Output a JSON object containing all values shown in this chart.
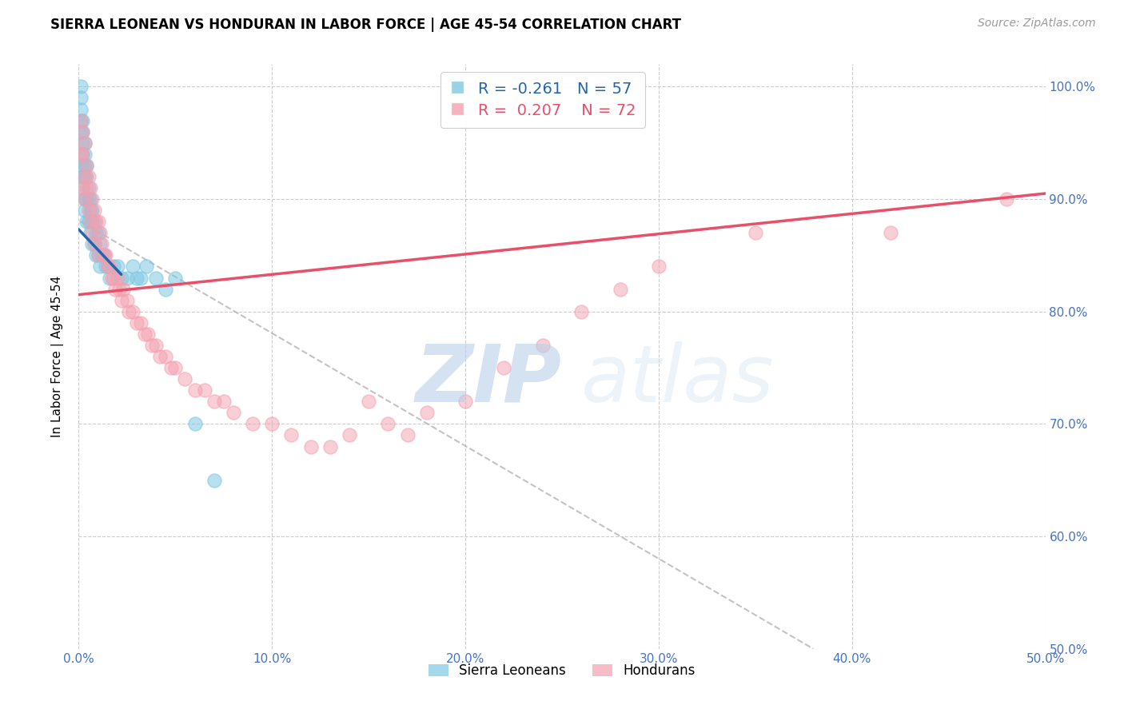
{
  "title": "SIERRA LEONEAN VS HONDURAN IN LABOR FORCE | AGE 45-54 CORRELATION CHART",
  "source": "Source: ZipAtlas.com",
  "ylabel": "In Labor Force | Age 45-54",
  "xlim": [
    0.0,
    0.5
  ],
  "ylim": [
    0.5,
    1.02
  ],
  "xticks": [
    0.0,
    0.1,
    0.2,
    0.3,
    0.4,
    0.5
  ],
  "xtick_labels": [
    "0.0%",
    "10.0%",
    "20.0%",
    "30.0%",
    "40.0%",
    "50.0%"
  ],
  "yticks": [
    0.5,
    0.6,
    0.7,
    0.8,
    0.9,
    1.0
  ],
  "ytick_labels": [
    "50.0%",
    "60.0%",
    "70.0%",
    "80.0%",
    "90.0%",
    "100.0%"
  ],
  "blue_color": "#7ec8e3",
  "pink_color": "#f4a0b0",
  "trend_blue_color": "#2166ac",
  "trend_pink_color": "#e8506a",
  "trend_gray_color": "#aaaaaa",
  "legend_R_blue": "-0.261",
  "legend_N_blue": "57",
  "legend_R_pink": "0.207",
  "legend_N_pink": "72",
  "legend_label_blue": "Sierra Leoneans",
  "legend_label_pink": "Hondurans",
  "blue_scatter_x": [
    0.001,
    0.001,
    0.001,
    0.001,
    0.001,
    0.002,
    0.002,
    0.002,
    0.002,
    0.002,
    0.002,
    0.002,
    0.003,
    0.003,
    0.003,
    0.003,
    0.003,
    0.003,
    0.004,
    0.004,
    0.004,
    0.004,
    0.005,
    0.005,
    0.005,
    0.006,
    0.006,
    0.006,
    0.007,
    0.007,
    0.007,
    0.008,
    0.008,
    0.009,
    0.009,
    0.01,
    0.01,
    0.011,
    0.011,
    0.012,
    0.013,
    0.014,
    0.015,
    0.016,
    0.018,
    0.02,
    0.022,
    0.025,
    0.028,
    0.03,
    0.032,
    0.035,
    0.04,
    0.045,
    0.05,
    0.06,
    0.07
  ],
  "blue_scatter_y": [
    1.0,
    0.99,
    0.98,
    0.97,
    0.96,
    0.97,
    0.96,
    0.95,
    0.94,
    0.93,
    0.92,
    0.91,
    0.95,
    0.94,
    0.93,
    0.92,
    0.9,
    0.89,
    0.93,
    0.92,
    0.9,
    0.88,
    0.91,
    0.9,
    0.88,
    0.9,
    0.89,
    0.87,
    0.89,
    0.88,
    0.86,
    0.88,
    0.86,
    0.87,
    0.85,
    0.87,
    0.85,
    0.86,
    0.84,
    0.85,
    0.85,
    0.84,
    0.84,
    0.83,
    0.84,
    0.84,
    0.83,
    0.83,
    0.84,
    0.83,
    0.83,
    0.84,
    0.83,
    0.82,
    0.83,
    0.7,
    0.65
  ],
  "pink_scatter_x": [
    0.001,
    0.001,
    0.002,
    0.002,
    0.002,
    0.003,
    0.003,
    0.003,
    0.004,
    0.004,
    0.005,
    0.005,
    0.006,
    0.006,
    0.007,
    0.007,
    0.008,
    0.008,
    0.009,
    0.01,
    0.01,
    0.011,
    0.012,
    0.013,
    0.014,
    0.015,
    0.016,
    0.017,
    0.018,
    0.019,
    0.02,
    0.021,
    0.022,
    0.023,
    0.025,
    0.026,
    0.028,
    0.03,
    0.032,
    0.034,
    0.036,
    0.038,
    0.04,
    0.042,
    0.045,
    0.048,
    0.05,
    0.055,
    0.06,
    0.065,
    0.07,
    0.075,
    0.08,
    0.09,
    0.1,
    0.11,
    0.12,
    0.13,
    0.14,
    0.15,
    0.16,
    0.17,
    0.18,
    0.2,
    0.22,
    0.24,
    0.26,
    0.28,
    0.3,
    0.35,
    0.42,
    0.48
  ],
  "pink_scatter_y": [
    0.97,
    0.94,
    0.96,
    0.94,
    0.91,
    0.95,
    0.92,
    0.9,
    0.93,
    0.91,
    0.92,
    0.89,
    0.91,
    0.88,
    0.9,
    0.87,
    0.89,
    0.86,
    0.88,
    0.88,
    0.85,
    0.87,
    0.86,
    0.85,
    0.85,
    0.84,
    0.84,
    0.83,
    0.83,
    0.82,
    0.83,
    0.82,
    0.81,
    0.82,
    0.81,
    0.8,
    0.8,
    0.79,
    0.79,
    0.78,
    0.78,
    0.77,
    0.77,
    0.76,
    0.76,
    0.75,
    0.75,
    0.74,
    0.73,
    0.73,
    0.72,
    0.72,
    0.71,
    0.7,
    0.7,
    0.69,
    0.68,
    0.68,
    0.69,
    0.72,
    0.7,
    0.69,
    0.71,
    0.72,
    0.75,
    0.77,
    0.8,
    0.82,
    0.84,
    0.87,
    0.87,
    0.9
  ],
  "blue_trend_x": [
    0.0,
    0.022
  ],
  "blue_trend_y": [
    0.873,
    0.833
  ],
  "pink_trend_x": [
    0.0,
    0.5
  ],
  "pink_trend_y": [
    0.815,
    0.905
  ],
  "gray_trend_x": [
    0.001,
    0.38
  ],
  "gray_trend_y": [
    0.88,
    0.5
  ],
  "title_fontsize": 12,
  "axis_label_fontsize": 11,
  "tick_fontsize": 11,
  "source_fontsize": 10,
  "background_color": "#ffffff",
  "grid_color": "#cccccc"
}
